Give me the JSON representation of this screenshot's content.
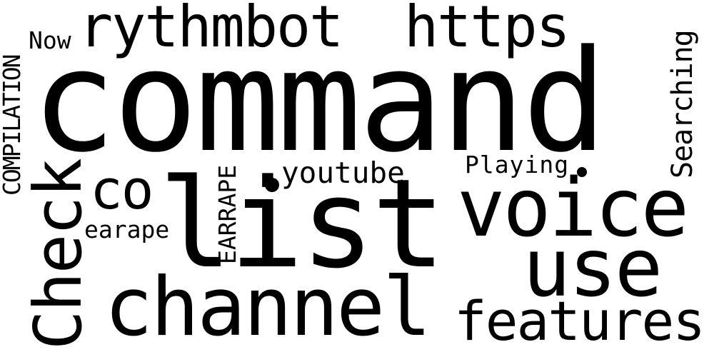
{
  "word_cloud": {
    "background": "#ffffff",
    "text_color": "#000000",
    "words": {
      "command": "command",
      "list": "list",
      "voice": "voice",
      "use": "use",
      "channel": "channel",
      "features": "features",
      "rythmbot": "rythmbot",
      "https": "https",
      "check": "Check",
      "co": "co",
      "youtube": "youtube",
      "playing": "Playing",
      "earape": "earape",
      "earrape": "EARRAPE",
      "compilation": "COMPILATION",
      "now": "Now",
      "searching": "Searching"
    }
  }
}
